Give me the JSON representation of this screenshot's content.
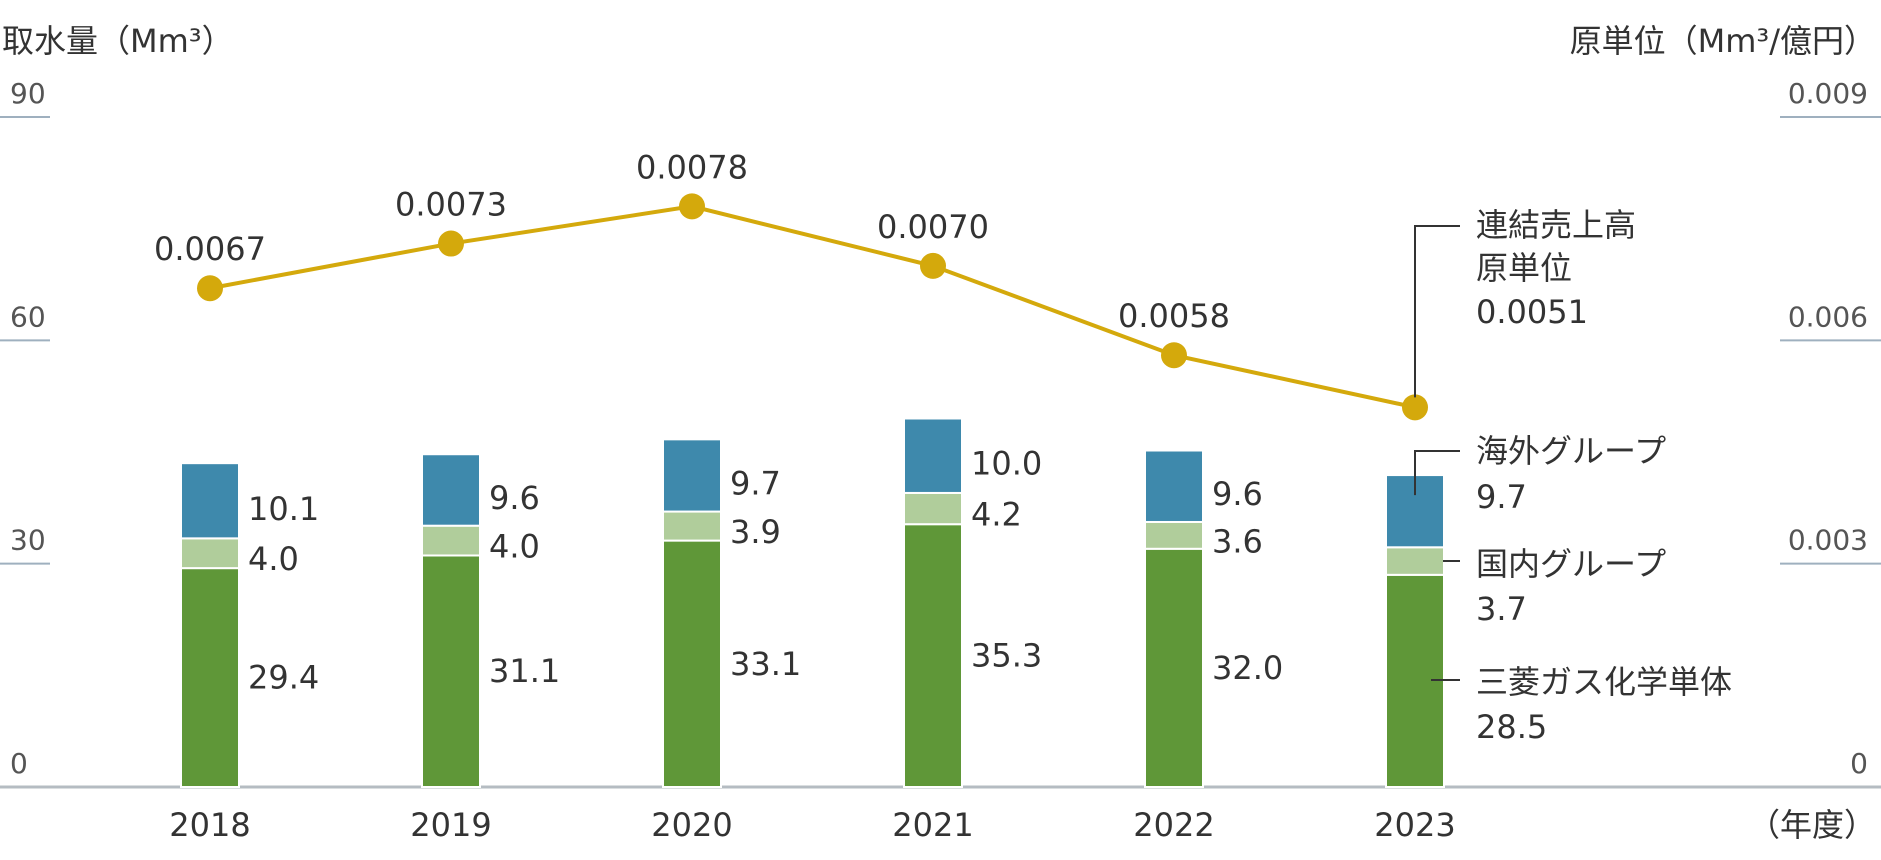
{
  "chart_data": {
    "type": "bar",
    "stacked": true,
    "left_axis_title": "取水量（Mm³）",
    "right_axis_title": "原単位（Mm³/億円）",
    "x_unit_label": "（年度）",
    "categories": [
      "2018",
      "2019",
      "2020",
      "2021",
      "2022",
      "2023"
    ],
    "left_ylim": [
      0,
      90
    ],
    "left_ticks": [
      "0",
      "30",
      "60",
      "90"
    ],
    "right_ylim": [
      0,
      0.009
    ],
    "right_ticks": [
      "0",
      "0.003",
      "0.006",
      "0.009"
    ],
    "series": [
      {
        "name": "三菱ガス化学単体",
        "values": [
          29.4,
          31.1,
          33.1,
          35.3,
          32.0,
          28.5
        ],
        "labels": [
          "29.4",
          "31.1",
          "33.1",
          "35.3",
          "32.0",
          "28.5"
        ],
        "color": "#5f9738"
      },
      {
        "name": "国内グループ",
        "values": [
          4.0,
          4.0,
          3.9,
          4.2,
          3.6,
          3.7
        ],
        "labels": [
          "4.0",
          "4.0",
          "3.9",
          "4.2",
          "3.6",
          "3.7"
        ],
        "color": "#b0cd9b"
      },
      {
        "name": "海外グループ",
        "values": [
          10.1,
          9.6,
          9.7,
          10.0,
          9.6,
          9.7
        ],
        "labels": [
          "10.1",
          "9.6",
          "9.7",
          "10.0",
          "9.6",
          "9.7"
        ],
        "color": "#3e89ac"
      }
    ],
    "line_series": {
      "name_lines": [
        "連結売上高",
        "原単位"
      ],
      "values": [
        0.0067,
        0.0073,
        0.0078,
        0.007,
        0.0058,
        0.0051
      ],
      "labels": [
        "0.0067",
        "0.0073",
        "0.0078",
        "0.0070",
        "0.0058",
        "0.0051"
      ],
      "color": "#d4a90c"
    },
    "legend_placement": "right",
    "grid": false
  }
}
